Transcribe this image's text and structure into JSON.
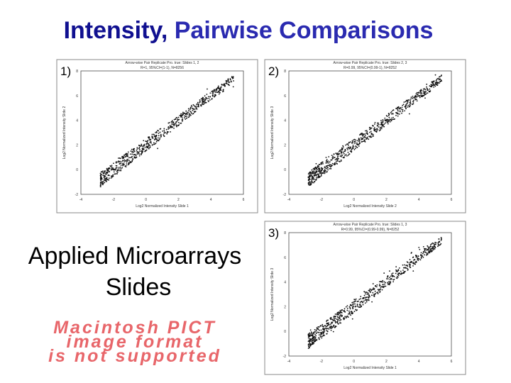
{
  "title": {
    "lead": "Intensity,",
    "rest": "Pairwise Comparisons"
  },
  "panels": [
    {
      "label": "1)",
      "header": [
        "Arrow-wise Pair Replicate Pro. true: Slides 1, 2",
        "R=1, 95%CI=(1-1), N=8256"
      ],
      "x_label": "Log2 Normalized Intensity Slide 1",
      "y_label": "Log2 Normalized Intensity Slide 2",
      "xticks": [
        "-4",
        "-2",
        "0",
        "2",
        "4",
        "6"
      ],
      "yticks": [
        "-2",
        "0",
        "2",
        "4",
        "6",
        "8"
      ]
    },
    {
      "label": "2)",
      "header": [
        "Arrow-wise Pair Replicate Pro. true: Slides 2, 3",
        "R=0.99, 95%CI=(0.99-1), N=8252"
      ],
      "x_label": "Log2 Normalized Intensity Slide 2",
      "y_label": "Log2 Normalized Intensity Slide 3",
      "xticks": [
        "-4",
        "-2",
        "0",
        "2",
        "4",
        "6"
      ],
      "yticks": [
        "-2",
        "0",
        "2",
        "4",
        "6",
        "8"
      ]
    },
    {
      "label": "3)",
      "header": [
        "Arrow-wise Pair Replicate Pro. true: Slides 1, 3",
        "R=0.99, 95%CI=(0.99-0.99), N=8252"
      ],
      "x_label": "Log2 Normalized Intensity Slide 1",
      "y_label": "Log2 Normalized Intensity Slide 3",
      "xticks": [
        "-4",
        "-2",
        "0",
        "2",
        "4",
        "6"
      ],
      "yticks": [
        "-2",
        "0",
        "2",
        "4",
        "6",
        "8"
      ]
    }
  ],
  "caption": [
    "Applied Microarrays",
    "Slides"
  ],
  "placeholder": [
    "Macintosh PICT",
    "image format",
    "is not supported"
  ]
}
